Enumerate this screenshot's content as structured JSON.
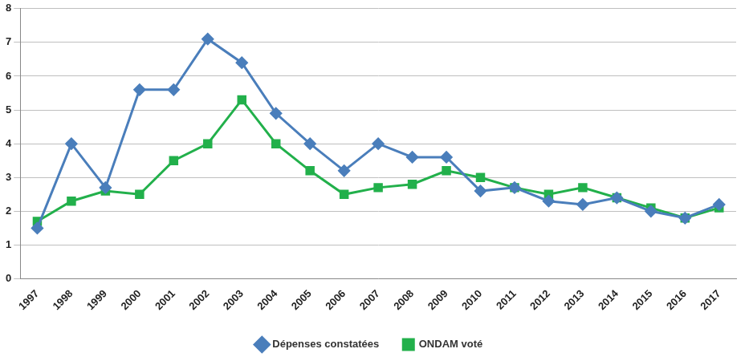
{
  "chart_data": {
    "type": "line",
    "categories": [
      "1997",
      "1998",
      "1999",
      "2000",
      "2001",
      "2002",
      "2003",
      "2004",
      "2005",
      "2006",
      "2007",
      "2008",
      "2009",
      "2010",
      "2011",
      "2012",
      "2013",
      "2014",
      "2015",
      "2016",
      "2017"
    ],
    "series": [
      {
        "name": "Dépenses constatées",
        "color": "#4a7ebb",
        "marker": "diamond",
        "line_style": "solid",
        "values": [
          1.5,
          4.0,
          2.7,
          5.6,
          5.6,
          7.1,
          6.4,
          4.9,
          4.0,
          3.2,
          4.0,
          3.6,
          3.6,
          2.6,
          2.7,
          2.3,
          2.2,
          2.4,
          2.0,
          1.8,
          2.2
        ]
      },
      {
        "name": "ONDAM voté",
        "color": "#22b04b",
        "marker": "square",
        "line_style": "solid",
        "values": [
          1.7,
          2.3,
          2.6,
          2.5,
          3.5,
          4.0,
          5.3,
          4.0,
          3.2,
          2.5,
          2.7,
          2.8,
          3.2,
          3.0,
          2.7,
          2.5,
          2.7,
          2.4,
          2.1,
          1.8,
          2.1
        ]
      }
    ],
    "ylim": [
      0,
      8
    ],
    "yticks": [
      0,
      1,
      2,
      3,
      4,
      5,
      6,
      7,
      8
    ],
    "grid": true,
    "legend": "bottom"
  }
}
